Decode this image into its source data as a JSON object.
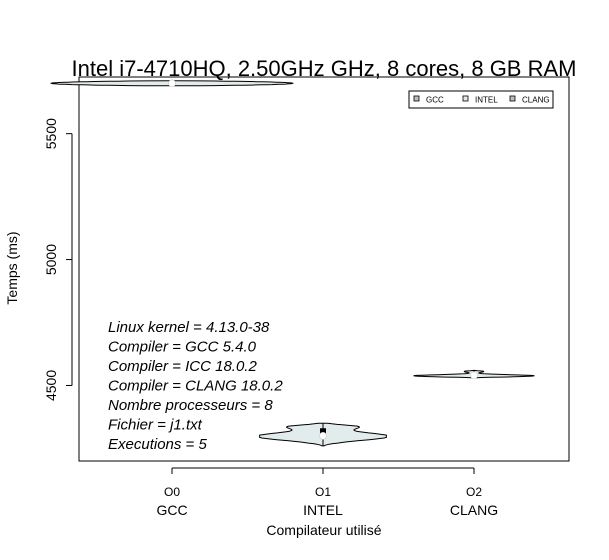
{
  "chart_data": {
    "type": "violin",
    "title": "Intel i7-4710HQ, 2.50GHz GHz, 8 cores, 8 GB RAM",
    "xlabel": "Compilateur utilisé",
    "ylabel": "Temps (ms)",
    "ylim": [
      4200,
      5725
    ],
    "yticks": [
      4500,
      5000,
      5500
    ],
    "categories": [
      {
        "opt": "O0",
        "name": "GCC"
      },
      {
        "opt": "O1",
        "name": "INTEL"
      },
      {
        "opt": "O2",
        "name": "CLANG"
      }
    ],
    "violins": [
      {
        "name": "GCC",
        "min": 5690,
        "max": 5710,
        "median": 5700,
        "halfwidth": 0.8,
        "profile": "gcc"
      },
      {
        "name": "INTEL",
        "min": 4260,
        "max": 4350,
        "median": 4300,
        "q1": 4290,
        "q3": 4330,
        "halfwidth": 0.42,
        "profile": "intel"
      },
      {
        "name": "CLANG",
        "min": 4530,
        "max": 4560,
        "median": 4540,
        "halfwidth": 0.4,
        "profile": "clang"
      }
    ],
    "legend": {
      "placement": "top-right",
      "entries": [
        {
          "label": "GCC",
          "color": "#bebebe"
        },
        {
          "label": "INTEL",
          "color": "#e6e6e6"
        },
        {
          "label": "CLANG",
          "color": "#bebebe"
        }
      ]
    },
    "fill_color": "#e3ecec",
    "annotations": [
      "Linux kernel = 4.13.0-38",
      "Compiler = GCC 5.4.0",
      "Compiler = ICC 18.0.2",
      "Compiler = CLANG 18.0.2",
      "Nombre processeurs = 8",
      "Fichier = j1.txt",
      "Executions = 5"
    ]
  }
}
